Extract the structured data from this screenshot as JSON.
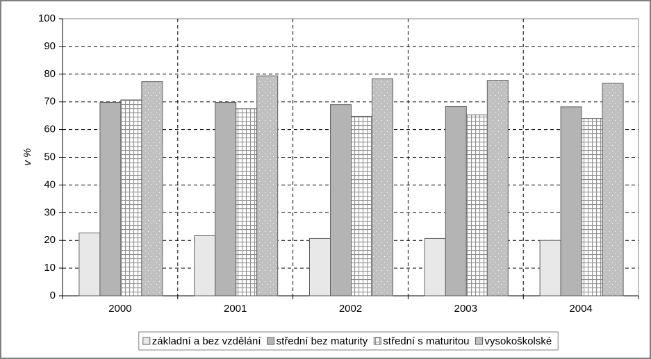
{
  "chart_data": {
    "type": "bar",
    "y_label": "v %",
    "categories": [
      "2000",
      "2001",
      "2002",
      "2003",
      "2004"
    ],
    "series": [
      {
        "name": "základní a bez vzdělání",
        "color": "#e8e8e8",
        "pattern": "solid",
        "values": [
          22.7,
          21.7,
          20.7,
          20.7,
          20.0
        ]
      },
      {
        "name": "střední bez maturity",
        "color": "#b4b4b4",
        "pattern": "solid",
        "values": [
          69.8,
          69.8,
          69.0,
          68.3,
          68.2
        ]
      },
      {
        "name": "střední s maturitou",
        "color": "#909090",
        "pattern": "grid",
        "values": [
          70.7,
          67.5,
          64.8,
          65.3,
          64.0
        ]
      },
      {
        "name": "vysokoškolské",
        "color": "#c0c0c0",
        "pattern": "dots",
        "values": [
          77.3,
          79.4,
          78.3,
          77.8,
          76.7
        ]
      }
    ],
    "ylim": [
      0,
      100
    ],
    "yticks": [
      0,
      10,
      20,
      30,
      40,
      50,
      60,
      70,
      80,
      90,
      100
    ],
    "grid": true,
    "legend": "bottom"
  }
}
